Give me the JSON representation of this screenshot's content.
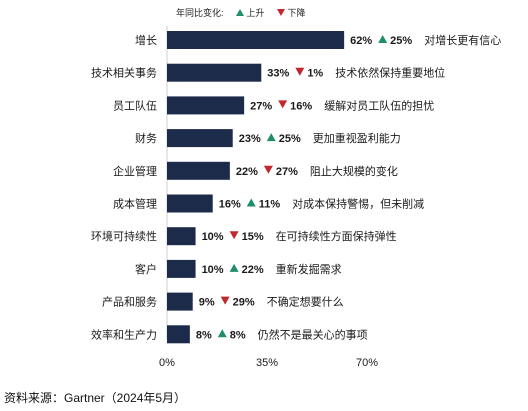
{
  "legend": {
    "title": "年同比变化:",
    "up_label": "上升",
    "down_label": "下降"
  },
  "source": "资料来源：Gartner（2024年5月）",
  "colors": {
    "bar": "#1d2b4a",
    "up": "#1f8f6b",
    "down": "#c0282d"
  },
  "chart_data": {
    "type": "bar",
    "orientation": "horizontal",
    "categories": [
      "增长",
      "技术相关事务",
      "员工队伍",
      "财务",
      "企业管理",
      "成本管理",
      "环境可持续性",
      "客户",
      "产品和服务",
      "效率和生产力"
    ],
    "values": [
      62,
      33,
      27,
      23,
      22,
      16,
      10,
      10,
      9,
      8
    ],
    "value_labels": [
      "62%",
      "33%",
      "27%",
      "23%",
      "22%",
      "16%",
      "10%",
      "10%",
      "9%",
      "8%"
    ],
    "yoy_change": [
      {
        "direction": "up",
        "label": "25%"
      },
      {
        "direction": "down",
        "label": "1%"
      },
      {
        "direction": "down",
        "label": "16%"
      },
      {
        "direction": "up",
        "label": "25%"
      },
      {
        "direction": "down",
        "label": "27%"
      },
      {
        "direction": "up",
        "label": "11%"
      },
      {
        "direction": "down",
        "label": "15%"
      },
      {
        "direction": "up",
        "label": "22%"
      },
      {
        "direction": "down",
        "label": "29%"
      },
      {
        "direction": "up",
        "label": "8%"
      }
    ],
    "annotations": [
      "对增长更有信心",
      "技术依然保持重要地位",
      "缓解对员工队伍的担忧",
      "更加重视盈利能力",
      "阻止大规模的变化",
      "对成本保持警惕，但未削减",
      "在可持续性方面保持弹性",
      "重新发掘需求",
      "不确定想要什么",
      "仍然不是最关心的事项"
    ],
    "xlim": [
      0,
      70
    ],
    "x_ticks": [
      "0%",
      "35%",
      "70%"
    ],
    "grid": false
  }
}
